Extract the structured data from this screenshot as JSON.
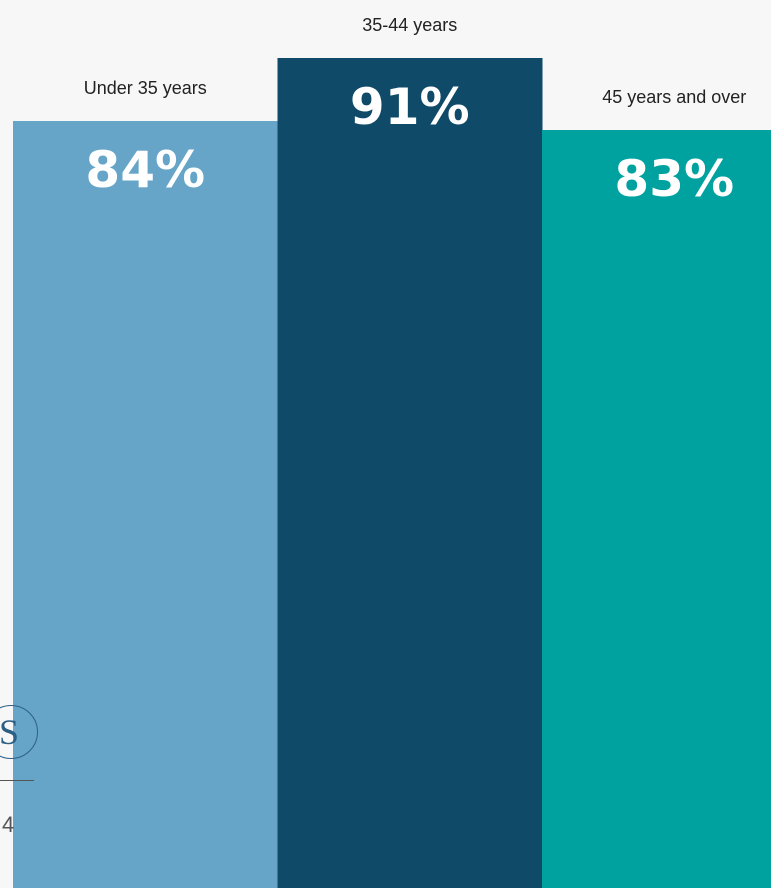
{
  "chart_data": {
    "type": "bar",
    "categories": [
      "Under 35 years",
      "35-44 years",
      "45 years and over"
    ],
    "values": [
      84,
      91,
      83
    ],
    "value_labels": [
      "84%",
      "91%",
      "83%"
    ],
    "colors": [
      "#66a5c8",
      "#0f4a68",
      "#00a2a0"
    ],
    "title": "",
    "xlabel": "",
    "ylabel": ""
  },
  "page": {
    "logo_letter": "S",
    "page_number": "4"
  }
}
